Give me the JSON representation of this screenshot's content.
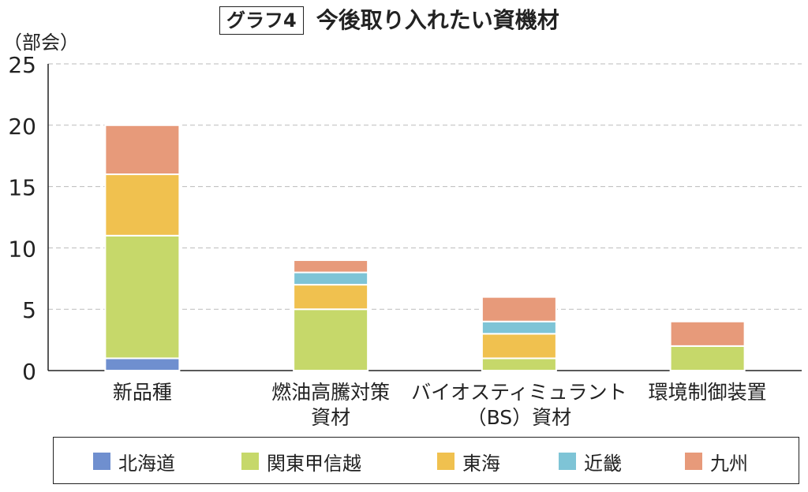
{
  "title": {
    "box": "グラフ4",
    "text": "今後取り入れたい資機材"
  },
  "unit_label": "（部会）",
  "colors": {
    "北海道": "#6f8fcf",
    "関東甲信越": "#c6d86a",
    "東海": "#f0c14f",
    "近畿": "#7ec4d6",
    "九州": "#e79a7a"
  },
  "chart_data": {
    "type": "bar",
    "stacked": true,
    "categories": [
      [
        "新品種"
      ],
      [
        "燃油高騰対策",
        "資材"
      ],
      [
        "バイオスティミュラント",
        "（BS）資材"
      ],
      [
        "環境制御装置"
      ]
    ],
    "series": [
      {
        "name": "北海道",
        "values": [
          1,
          0,
          0,
          0
        ]
      },
      {
        "name": "関東甲信越",
        "values": [
          10,
          5,
          1,
          2
        ]
      },
      {
        "name": "東海",
        "values": [
          5,
          2,
          2,
          0
        ]
      },
      {
        "name": "近畿",
        "values": [
          0,
          1,
          1,
          0
        ]
      },
      {
        "name": "九州",
        "values": [
          4,
          1,
          2,
          2
        ]
      }
    ],
    "ylim": [
      0,
      25
    ],
    "yticks": [
      0,
      5,
      10,
      15,
      20,
      25
    ],
    "ylabel": "（部会）",
    "grid": "horizontal-dashed",
    "legend_position": "bottom"
  }
}
